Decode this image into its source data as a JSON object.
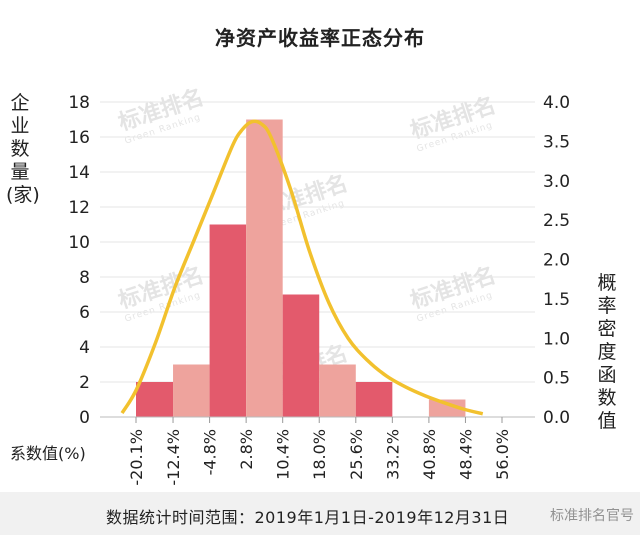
{
  "chart_data": {
    "type": "bar",
    "title": "净资产收益率正态分布",
    "ylabel_left": "企业数量(家)",
    "ylabel_right": "概率密度函数值",
    "xlabel": "系数值(%)",
    "x_ticks": [
      "-20.1%",
      "-12.4%",
      "-4.8%",
      "2.8%",
      "10.4%",
      "18.0%",
      "25.6%",
      "33.2%",
      "40.8%",
      "48.4%",
      "56.0%"
    ],
    "y_left_ticks": [
      "0",
      "2",
      "4",
      "6",
      "8",
      "10",
      "12",
      "14",
      "16",
      "18"
    ],
    "y_right_ticks": [
      "0.0",
      "0.5",
      "1.0",
      "1.5",
      "2.0",
      "2.5",
      "3.0",
      "3.5",
      "4.0"
    ],
    "ylim_left": [
      0,
      18
    ],
    "ylim_right": [
      0,
      4.0
    ],
    "bins": [
      {
        "from": -20.1,
        "to": -12.4,
        "count": 2
      },
      {
        "from": -12.4,
        "to": -4.8,
        "count": 3
      },
      {
        "from": -4.8,
        "to": 2.8,
        "count": 11
      },
      {
        "from": 2.8,
        "to": 10.4,
        "count": 17
      },
      {
        "from": 10.4,
        "to": 18.0,
        "count": 7
      },
      {
        "from": 18.0,
        "to": 25.6,
        "count": 3
      },
      {
        "from": 25.6,
        "to": 33.2,
        "count": 2
      },
      {
        "from": 33.2,
        "to": 40.8,
        "count": 0
      },
      {
        "from": 40.8,
        "to": 48.4,
        "count": 1
      },
      {
        "from": 48.4,
        "to": 56.0,
        "count": 0
      }
    ],
    "density_curve": {
      "x": [
        -23,
        -20,
        -16,
        -12,
        -8,
        -4,
        0,
        2,
        4,
        6,
        8,
        12,
        16,
        20,
        24,
        28,
        32,
        36,
        40,
        44,
        48,
        52
      ],
      "y": [
        0.05,
        0.35,
        0.95,
        1.65,
        2.25,
        2.85,
        3.45,
        3.65,
        3.75,
        3.72,
        3.55,
        2.9,
        2.1,
        1.45,
        1.0,
        0.72,
        0.52,
        0.38,
        0.27,
        0.18,
        0.1,
        0.04
      ]
    },
    "colors": {
      "bar_dark": "#e35a6c",
      "bar_light": "#eea39d",
      "curve": "#f2c12e"
    },
    "grid": true
  },
  "footer": {
    "text": "数据统计时间范围：2019年1月1日-2019年12月31日",
    "brand": "标准排名官号"
  },
  "watermark": {
    "cn": "标准排名",
    "en": "Green Ranking"
  }
}
